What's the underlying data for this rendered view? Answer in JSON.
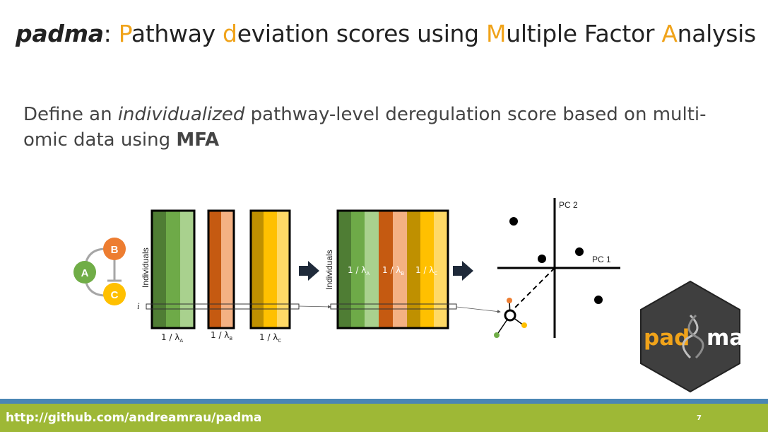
{
  "title": {
    "brand": "padma",
    "colon": ":",
    "parts": [
      {
        "hl": "P",
        "rest": "athway "
      },
      {
        "hl": "d",
        "rest": "eviation scores using "
      },
      {
        "hl": "M",
        "rest": "ultiple Factor "
      },
      {
        "hl": "A",
        "rest": "nalysis"
      }
    ]
  },
  "subtitle": {
    "part1": "Define an ",
    "italic": "individualized",
    "part2": " pathway-level deregulation score based on multi-omic data using ",
    "bold": "MFA"
  },
  "network": {
    "nodes": [
      {
        "label": "A",
        "color": "#70ad47"
      },
      {
        "label": "B",
        "color": "#ed7d31"
      },
      {
        "label": "C",
        "color": "#ffc000"
      }
    ]
  },
  "matrices": {
    "individuals_label": "Individuals",
    "row_label": "i",
    "weight_labels": [
      "1 / λ",
      "1 / λ",
      "1 / λ"
    ],
    "weight_subscripts": [
      "A",
      "B",
      "C"
    ]
  },
  "plot": {
    "axis1_label": "PC 1",
    "axis2_label": "PC 2"
  },
  "logo": {
    "text_left": "pad",
    "text_right": "ma",
    "colors": {
      "hex": "#3f3f3f",
      "text_left": "#f0a31a",
      "text_right": "#ffffff"
    }
  },
  "footer": {
    "url": "http://github.com/andreamrau/padma",
    "page": "7"
  },
  "colors": {
    "accent": "#f0a31a",
    "footer_bar": "#9eb836",
    "footer_strip": "#4a86b4",
    "green": [
      "#4f7d34",
      "#6eaa48",
      "#a9d18e"
    ],
    "orange": [
      "#c55a11",
      "#f4b183"
    ],
    "yellow": [
      "#bf9000",
      "#ffc000",
      "#ffd966"
    ]
  }
}
